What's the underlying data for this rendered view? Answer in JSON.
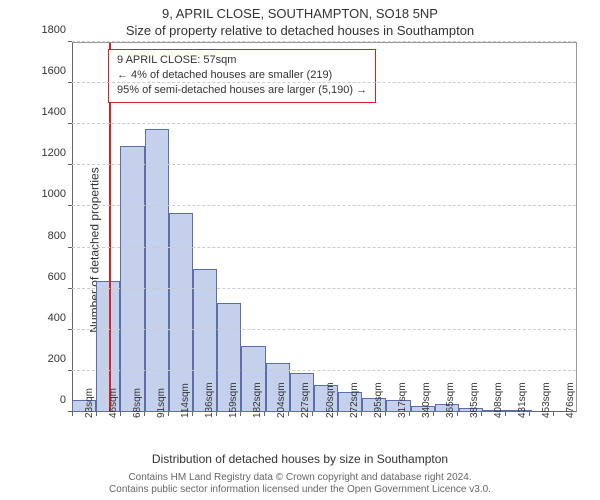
{
  "title": "9, APRIL CLOSE, SOUTHAMPTON, SO18 5NP",
  "subtitle": "Size of property relative to detached houses in Southampton",
  "chart": {
    "type": "histogram",
    "categories": [
      "23sqm",
      "46sqm",
      "68sqm",
      "91sqm",
      "114sqm",
      "136sqm",
      "159sqm",
      "182sqm",
      "204sqm",
      "227sqm",
      "250sqm",
      "272sqm",
      "295sqm",
      "317sqm",
      "340sqm",
      "365sqm",
      "385sqm",
      "408sqm",
      "431sqm",
      "453sqm",
      "476sqm"
    ],
    "values": [
      60,
      640,
      1300,
      1380,
      970,
      700,
      530,
      320,
      240,
      190,
      130,
      100,
      70,
      60,
      30,
      40,
      20,
      10,
      5,
      0,
      0
    ],
    "bar_fill": "#c4d0ec",
    "bar_border": "#5a6fa8",
    "ylim": [
      0,
      1800
    ],
    "ytick_step": 200,
    "grid_color": "#cccccc",
    "background": "#ffffff",
    "ref_line_index_after": 1,
    "ref_line_color": "#d62222",
    "label_fontsize": 12,
    "tick_fontsize": 11
  },
  "legend": {
    "border_color": "#d62222",
    "line1": "9 APRIL CLOSE: 57sqm",
    "line2": "← 4% of detached houses are smaller (219)",
    "line3": "95% of semi-detached houses are larger (5,190) →"
  },
  "ylabel": "Number of detached properties",
  "xlabel": "Distribution of detached houses by size in Southampton",
  "footer": {
    "line1": "Contains HM Land Registry data © Crown copyright and database right 2024.",
    "line2": "Contains public sector information licensed under the Open Government Licence v3.0."
  }
}
